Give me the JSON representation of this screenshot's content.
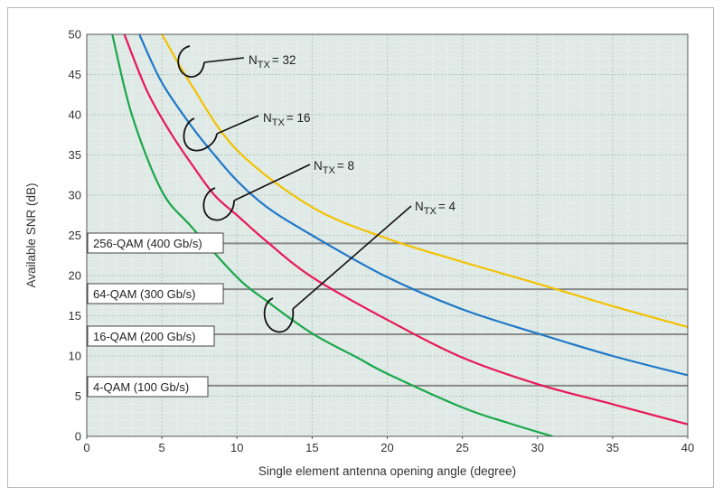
{
  "chart_data": {
    "type": "line",
    "xlabel": "Single element antenna opening angle (degree)",
    "ylabel": "Available SNR (dB)",
    "xlim": [
      0,
      40
    ],
    "ylim": [
      0,
      50
    ],
    "xticks": [
      0,
      5,
      10,
      15,
      20,
      25,
      30,
      35,
      40
    ],
    "yticks": [
      0,
      5,
      10,
      15,
      20,
      25,
      30,
      35,
      40,
      45,
      50
    ],
    "grid": true,
    "background_color": "#dfe9e6",
    "series": [
      {
        "name": "32",
        "color": "#f2c200",
        "x": [
          5,
          7,
          10,
          15,
          20,
          25,
          30,
          35,
          40
        ],
        "y": [
          50,
          43.6,
          35.6,
          28.5,
          24.6,
          21.7,
          19.0,
          16.2,
          13.6
        ]
      },
      {
        "name": "16",
        "color": "#1f78c8",
        "x": [
          3.5,
          5,
          7,
          8.5,
          10,
          12,
          15,
          20,
          25,
          30,
          35,
          40
        ],
        "y": [
          50,
          44,
          38.5,
          35.0,
          31.8,
          28.5,
          25.0,
          19.8,
          15.8,
          12.8,
          10.0,
          7.6
        ]
      },
      {
        "name": "8",
        "color": "#e8185a",
        "x": [
          2.5,
          4,
          5.5,
          7,
          8.5,
          10,
          12,
          15,
          20,
          25,
          30,
          35,
          40
        ],
        "y": [
          50,
          43,
          38,
          33.8,
          30.0,
          27.5,
          24.2,
          19.8,
          14.5,
          9.8,
          6.5,
          4.0,
          1.5
        ]
      },
      {
        "name": "4",
        "color": "#1aa84b",
        "x": [
          1.7,
          3,
          5,
          7,
          10,
          12,
          15,
          18,
          20,
          25,
          28,
          31
        ],
        "y": [
          50,
          40,
          30.5,
          26.0,
          19.8,
          16.8,
          12.8,
          9.8,
          7.8,
          3.6,
          1.7,
          0
        ]
      }
    ],
    "thresholds": [
      {
        "label": "256-QAM (400 Gb/s)",
        "y": 24
      },
      {
        "label": "64-QAM (300 Gb/s)",
        "y": 18.3
      },
      {
        "label": "16-QAM (200 Gb/s)",
        "y": 12.7
      },
      {
        "label": "4-QAM (100 Gb/s)",
        "y": 6.3
      }
    ],
    "annotations": [
      {
        "prefix": "N",
        "sub": "TX",
        "suffix": "= 32"
      },
      {
        "prefix": "N",
        "sub": "TX",
        "suffix": "= 16"
      },
      {
        "prefix": "N",
        "sub": "TX",
        "suffix": "= 8"
      },
      {
        "prefix": "N",
        "sub": "TX",
        "suffix": "= 4"
      }
    ]
  }
}
